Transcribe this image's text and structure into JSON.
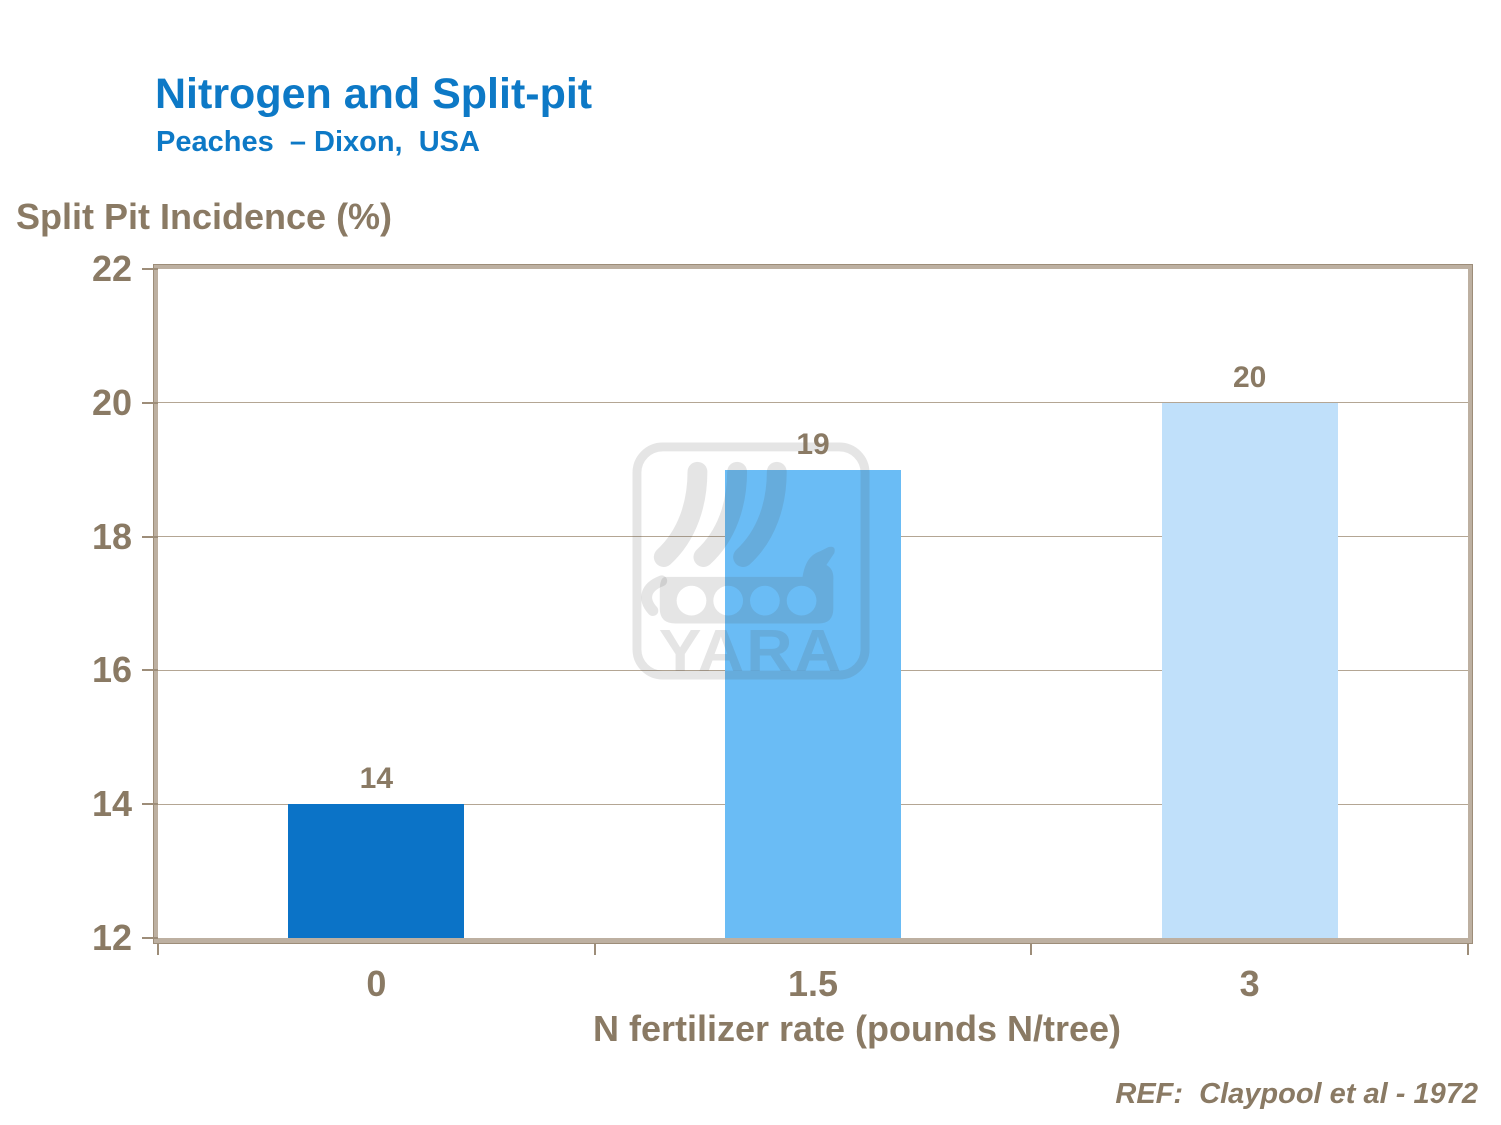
{
  "header": {
    "title": "Nitrogen and Split-pit",
    "subtitle": "Peaches  – Dixon,  USA"
  },
  "footer": {
    "reference": "REF:  Claypool et al - 1972"
  },
  "watermark": {
    "text": "YARA",
    "icon": "viking-ship-logo"
  },
  "chart_data": {
    "type": "bar",
    "title": "Nitrogen and Split-pit",
    "subtitle": "Peaches – Dixon, USA",
    "categories": [
      "0",
      "1.5",
      "3"
    ],
    "values": [
      14,
      19,
      20
    ],
    "data_labels": [
      "14",
      "19",
      "20"
    ],
    "xlabel": "N fertilizer rate (pounds N/tree)",
    "ylabel": "Split Pit Incidence (%)",
    "ylim": [
      12,
      22
    ],
    "yticks": [
      12,
      14,
      16,
      18,
      20,
      22
    ],
    "grid": "horizontal-major",
    "legend_position": "none",
    "bar_colors": [
      "#0b73c7",
      "#6abcf5",
      "#c0e0fa"
    ]
  },
  "colors": {
    "title_blue": "#0d79c6",
    "axis_text_brown": "#8a7a64",
    "gridline": "#b4a694",
    "frame": "#bdb0a1",
    "frame_edge": "#9d8d79"
  }
}
